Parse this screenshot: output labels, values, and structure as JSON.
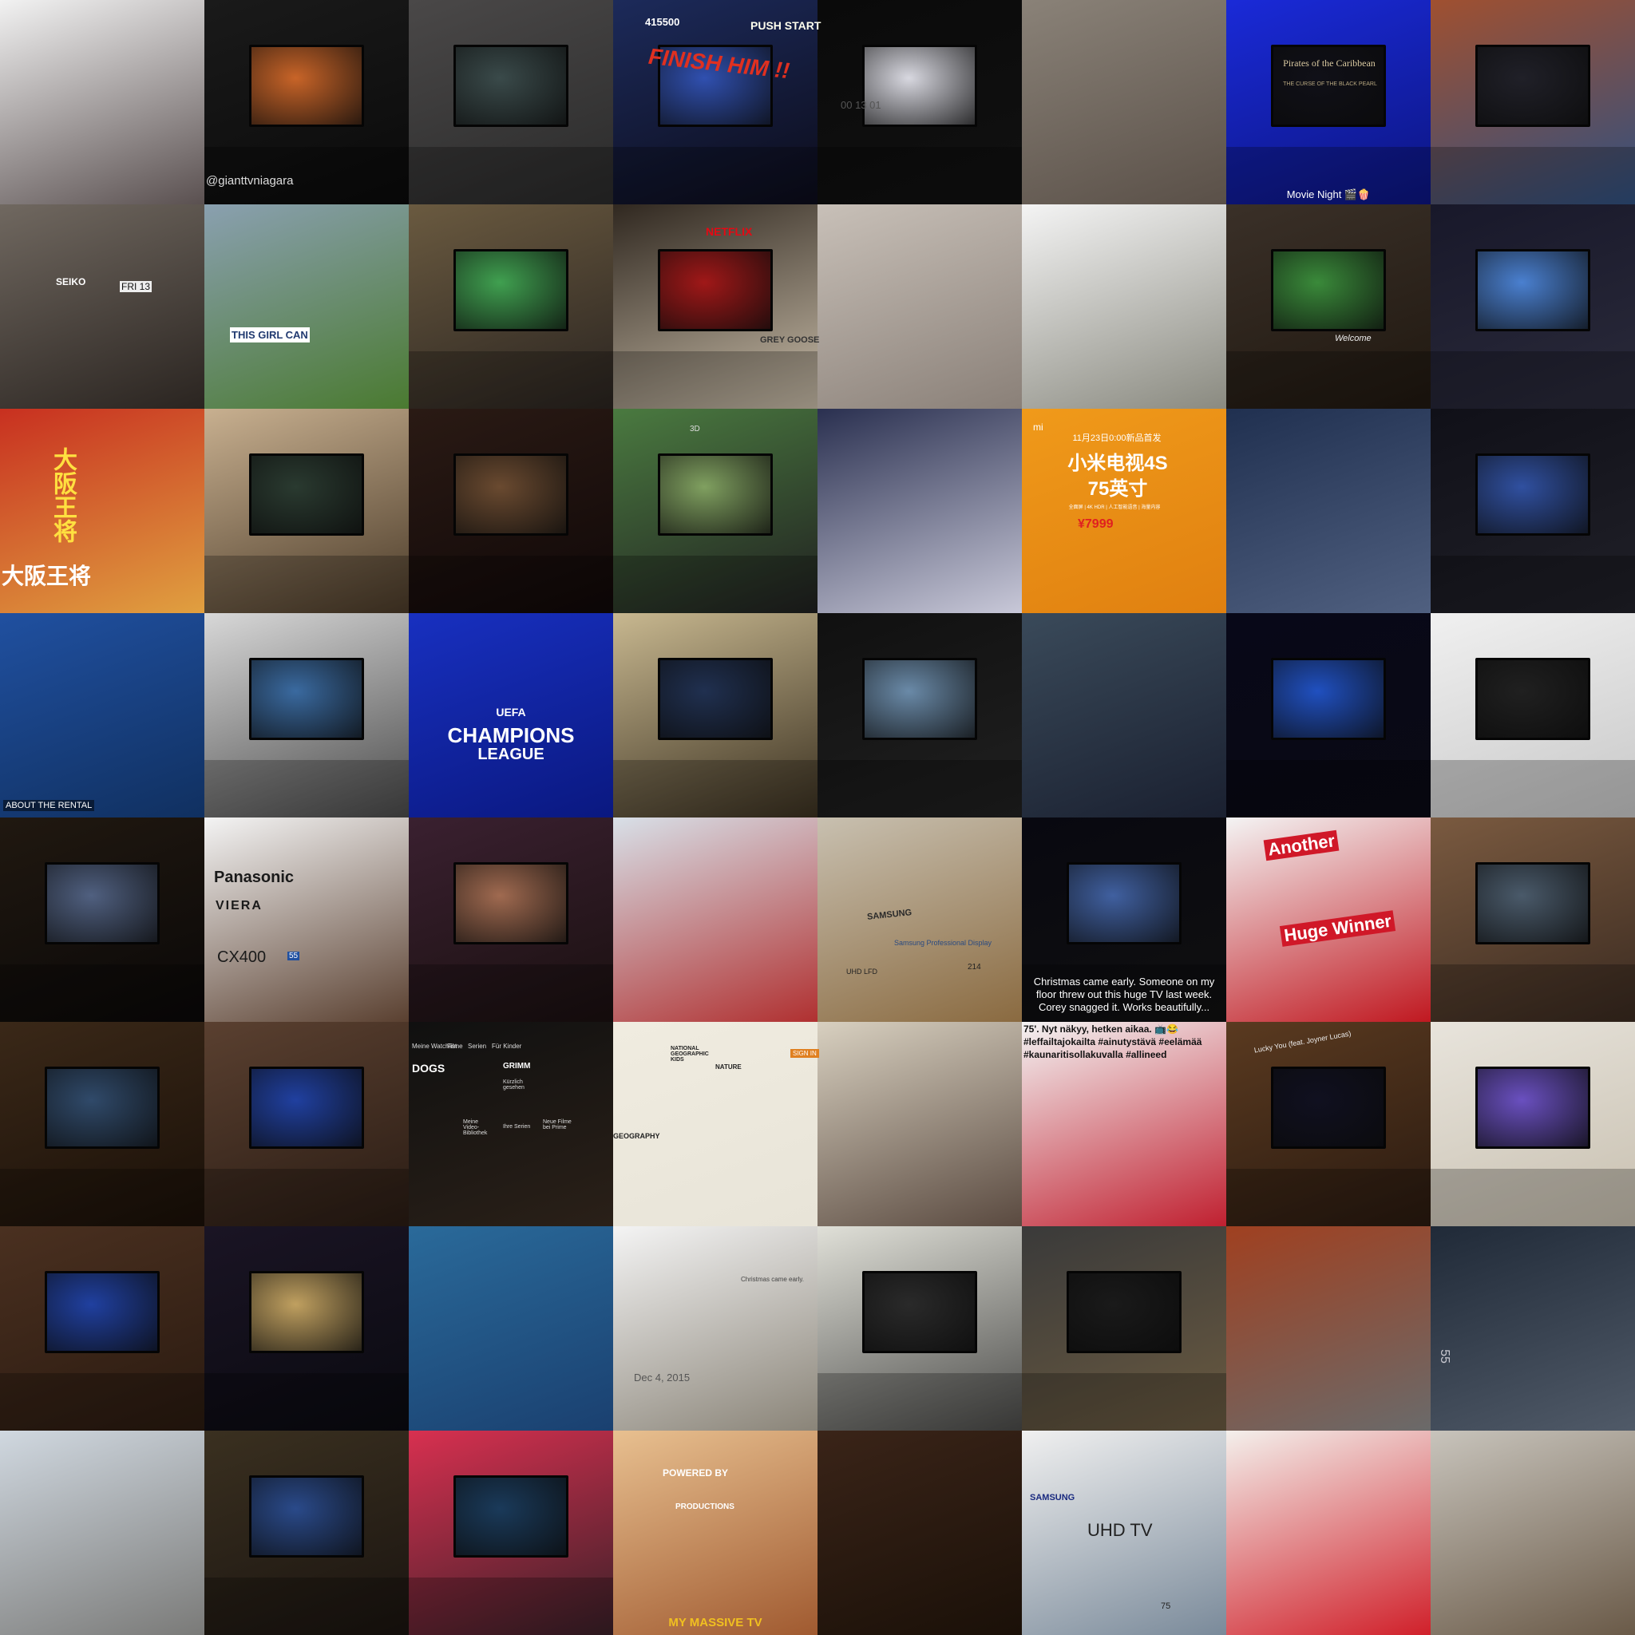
{
  "tiles": [
    {
      "id": "r0c0",
      "bg": [
        "#f2f2f2",
        "#5a5050"
      ],
      "screen": false,
      "desc": "selfie-couple"
    },
    {
      "id": "r0c1",
      "bg": [
        "#1a1a1a",
        "#0a0a0a"
      ],
      "screen": true,
      "screen_color": "#c86428",
      "desc": "camera-filming-tv"
    },
    {
      "id": "r0c2",
      "bg": [
        "#4a4848",
        "#2a2a2a"
      ],
      "screen": true,
      "screen_color": "#3a4a4a",
      "desc": "empty-living-room-tv-wall"
    },
    {
      "id": "r0c3",
      "bg": [
        "#1c2a5a",
        "#0c0c1a"
      ],
      "screen": true,
      "screen_color": "#3050b0",
      "desc": "arcade-game-on-tv"
    },
    {
      "id": "r0c4",
      "bg": [
        "#0a0a0a",
        "#111111"
      ],
      "screen": true,
      "screen_color": "#d8d8e0",
      "desc": "computer-screen-dashboard"
    },
    {
      "id": "r0c5",
      "bg": [
        "#8a8278",
        "#5a5048"
      ],
      "screen": false,
      "desc": "unfinished-wall"
    },
    {
      "id": "r0c6",
      "bg": [
        "#1a2ad8",
        "#0c1580"
      ],
      "screen": true,
      "screen_color": "#101018",
      "desc": "movie-night-blue-room"
    },
    {
      "id": "r0c7",
      "bg": [
        "#a05030",
        "#305080"
      ],
      "screen": true,
      "screen_color": "#202028",
      "desc": "brick-wall-collage"
    },
    {
      "id": "r1c0",
      "bg": [
        "#706860",
        "#2a2420"
      ],
      "screen": false,
      "desc": "seiko-watch"
    },
    {
      "id": "r1c1",
      "bg": [
        "#8aa0b0",
        "#4a7a30"
      ],
      "screen": false,
      "desc": "group-outdoor-banner"
    },
    {
      "id": "r1c2",
      "bg": [
        "#6a5a40",
        "#2a2420"
      ],
      "screen": true,
      "screen_color": "#40a050",
      "desc": "selfie-soccer-projection"
    },
    {
      "id": "r1c3",
      "bg": [
        "#302820",
        "#c8bca8"
      ],
      "screen": true,
      "screen_color": "#a01818",
      "desc": "netflix-drinks-table"
    },
    {
      "id": "r1c4",
      "bg": [
        "#c8c0b8",
        "#8a8078"
      ],
      "screen": false,
      "desc": "empty-apartment-room"
    },
    {
      "id": "r1c5",
      "bg": [
        "#f4f4f4",
        "#8a8a80"
      ],
      "screen": false,
      "desc": "window-view-cat-bed"
    },
    {
      "id": "r1c6",
      "bg": [
        "#3a3028",
        "#201810"
      ],
      "screen": true,
      "screen_color": "#3a8a3a",
      "desc": "football-on-tv-fireplace"
    },
    {
      "id": "r1c7",
      "bg": [
        "#18182a",
        "#2a2a3a"
      ],
      "screen": true,
      "screen_color": "#4a80d0",
      "desc": "dark-room-tv-menu"
    },
    {
      "id": "r2c0",
      "bg": [
        "#c83020",
        "#e0a040"
      ],
      "screen": false,
      "desc": "osaka-street-signs"
    },
    {
      "id": "r2c1",
      "bg": [
        "#c8b090",
        "#4a3a28"
      ],
      "screen": true,
      "screen_color": "#2a3a30",
      "desc": "tv-fish-scene"
    },
    {
      "id": "r2c2",
      "bg": [
        "#2a1a14",
        "#100808"
      ],
      "screen": true,
      "screen_color": "#6a4a30",
      "desc": "dark-bedroom-tv"
    },
    {
      "id": "r2c3",
      "bg": [
        "#4a7a40",
        "#202020"
      ],
      "screen": true,
      "screen_color": "#80a060",
      "desc": "tv-presenter"
    },
    {
      "id": "r2c4",
      "bg": [
        "#2a3050",
        "#c8c8d8"
      ],
      "screen": false,
      "desc": "white-dog-plush"
    },
    {
      "id": "r2c5",
      "bg": [
        "#f09a1a",
        "#e08010"
      ],
      "screen": false,
      "desc": "xiaomi-tv-ad"
    },
    {
      "id": "r2c6",
      "bg": [
        "#203050",
        "#506080"
      ],
      "screen": false,
      "desc": "legs-on-couch"
    },
    {
      "id": "r2c7",
      "bg": [
        "#101018",
        "#202028"
      ],
      "screen": true,
      "screen_color": "#3050a0",
      "desc": "wrestling-on-tv"
    },
    {
      "id": "r3c0",
      "bg": [
        "#2050a0",
        "#103060"
      ],
      "screen": false,
      "desc": "crowd-on-tv-closeup"
    },
    {
      "id": "r3c1",
      "bg": [
        "#d8d8d8",
        "#4a4a4a"
      ],
      "screen": true,
      "screen_color": "#3a6aa0",
      "desc": "office-video-wall"
    },
    {
      "id": "r3c2",
      "bg": [
        "#1830c0",
        "#0a1880"
      ],
      "screen": false,
      "desc": "champions-league-logo"
    },
    {
      "id": "r3c3",
      "bg": [
        "#c8b890",
        "#3a3020"
      ],
      "screen": true,
      "screen_color": "#203050",
      "desc": "tv-on-cabinet"
    },
    {
      "id": "r3c4",
      "bg": [
        "#101010",
        "#202020"
      ],
      "screen": true,
      "screen_color": "#6a8aa8",
      "desc": "video-game-on-tv"
    },
    {
      "id": "r3c5",
      "bg": [
        "#3a4a5a",
        "#1a2030"
      ],
      "screen": false,
      "desc": "people-posing"
    },
    {
      "id": "r3c6",
      "bg": [
        "#080818",
        "#0a0a14"
      ],
      "screen": true,
      "screen_color": "#2050c0",
      "desc": "dark-tv-glow"
    },
    {
      "id": "r3c7",
      "bg": [
        "#f0f0f0",
        "#c8c8c8"
      ],
      "screen": true,
      "screen_color": "#202020",
      "desc": "white-living-room"
    },
    {
      "id": "r4c0",
      "bg": [
        "#201810",
        "#0a0808"
      ],
      "screen": true,
      "screen_color": "#506080",
      "desc": "bar-with-screens"
    },
    {
      "id": "r4c1",
      "bg": [
        "#f4f4f4",
        "#5a4030"
      ],
      "screen": false,
      "desc": "panasonic-viera-box"
    },
    {
      "id": "r4c2",
      "bg": [
        "#3a2030",
        "#1a1010"
      ],
      "screen": true,
      "screen_color": "#a06a50",
      "desc": "projector-movie-room"
    },
    {
      "id": "r4c3",
      "bg": [
        "#d8e0e8",
        "#b03030"
      ],
      "screen": false,
      "desc": "snow-selfie"
    },
    {
      "id": "r4c4",
      "bg": [
        "#c8c0b0",
        "#8a6a40"
      ],
      "screen": false,
      "desc": "samsung-display-box"
    },
    {
      "id": "r4c5",
      "bg": [
        "#080810",
        "#101010"
      ],
      "screen": true,
      "screen_color": "#4060a0",
      "desc": "tv-christmas-caption"
    },
    {
      "id": "r4c6",
      "bg": [
        "#f4f4f4",
        "#c01820"
      ],
      "screen": false,
      "desc": "huge-winner-promo"
    },
    {
      "id": "r4c7",
      "bg": [
        "#7a5a40",
        "#3a2a20"
      ],
      "screen": true,
      "screen_color": "#4a5a6a",
      "desc": "fireplace-tv-collage"
    },
    {
      "id": "r5c0",
      "bg": [
        "#3a2818",
        "#1a1008"
      ],
      "screen": true,
      "screen_color": "#304a6a",
      "desc": "bookshelf-dog-tv"
    },
    {
      "id": "r5c1",
      "bg": [
        "#5a4030",
        "#2a1c14"
      ],
      "screen": true,
      "screen_color": "#2040a0",
      "desc": "girl-hotel-tv"
    },
    {
      "id": "r5c2",
      "bg": [
        "#101010",
        "#2a2018"
      ],
      "screen": false,
      "desc": "streaming-app-menu"
    },
    {
      "id": "r5c3",
      "bg": [
        "#f0ece0",
        "#e8e4d8"
      ],
      "screen": false,
      "desc": "natgeo-kids-page"
    },
    {
      "id": "r5c4",
      "bg": [
        "#d8d0c0",
        "#5a4a40"
      ],
      "screen": false,
      "desc": "cartoon-on-tv"
    },
    {
      "id": "r5c5",
      "bg": [
        "#f4f4f4",
        "#c02030"
      ],
      "screen": false,
      "desc": "finnish-caption-tv"
    },
    {
      "id": "r5c6",
      "bg": [
        "#5a3a20",
        "#2a1a10"
      ],
      "screen": true,
      "screen_color": "#101020",
      "desc": "music-player-tv"
    },
    {
      "id": "r5c7",
      "bg": [
        "#e8e4dc",
        "#c8c0b0"
      ],
      "screen": true,
      "screen_color": "#6a50c0",
      "desc": "purple-swimmer-tv"
    },
    {
      "id": "r6c0",
      "bg": [
        "#4a3020",
        "#2a1a10"
      ],
      "screen": true,
      "screen_color": "#2040a0",
      "desc": "home-theater-cabinet"
    },
    {
      "id": "r6c1",
      "bg": [
        "#1a1424",
        "#0a0a10"
      ],
      "screen": true,
      "screen_color": "#c0a060",
      "desc": "tv-wall-presentation"
    },
    {
      "id": "r6c2",
      "bg": [
        "#2a6a9a",
        "#1a4070"
      ],
      "screen": false,
      "desc": "rusty-tv-beach"
    },
    {
      "id": "r6c3",
      "bg": [
        "#f4f4f4",
        "#8a8478"
      ],
      "screen": false,
      "desc": "tv-assembly-collage"
    },
    {
      "id": "r6c4",
      "bg": [
        "#e0e0d8",
        "#4a4a48"
      ],
      "screen": true,
      "screen_color": "#2a2a2a",
      "desc": "crt-tv-on-cart"
    },
    {
      "id": "r6c5",
      "bg": [
        "#3a3a3a",
        "#6a5a40"
      ],
      "screen": true,
      "screen_color": "#1a1a1a",
      "desc": "selfie-conference-room"
    },
    {
      "id": "r6c6",
      "bg": [
        "#a04020",
        "#6a6a6a"
      ],
      "screen": false,
      "desc": "street-led-canopy"
    },
    {
      "id": "r6c7",
      "bg": [
        "#202a38",
        "#505a68"
      ],
      "screen": false,
      "desc": "55-inch-box"
    },
    {
      "id": "r7c0",
      "bg": [
        "#d0d8e0",
        "#7a7a78"
      ],
      "screen": false,
      "desc": "street-event-woman"
    },
    {
      "id": "r7c1",
      "bg": [
        "#3a3020",
        "#1a1410"
      ],
      "screen": true,
      "screen_color": "#2a4a8a",
      "desc": "kids-watching-sports"
    },
    {
      "id": "r7c2",
      "bg": [
        "#d83050",
        "#3a2028"
      ],
      "screen": true,
      "screen_color": "#1a3a5a",
      "desc": "pink-lit-living-room"
    },
    {
      "id": "r7c3",
      "bg": [
        "#e8c090",
        "#a05a30"
      ],
      "screen": false,
      "desc": "my-massive-tv-game"
    },
    {
      "id": "r7c4",
      "bg": [
        "#3a2418",
        "#1a1008"
      ],
      "screen": false,
      "desc": "ornate-interior"
    },
    {
      "id": "r7c5",
      "bg": [
        "#f0f0f0",
        "#7a8a9a"
      ],
      "screen": false,
      "desc": "samsung-uhd-box"
    },
    {
      "id": "r7c6",
      "bg": [
        "#f4f0ec",
        "#d0202a"
      ],
      "screen": false,
      "desc": "three-women-red-dresses"
    },
    {
      "id": "r7c7",
      "bg": [
        "#c8c4bc",
        "#6a5a48"
      ],
      "screen": false,
      "desc": "living-room-plate"
    }
  ],
  "texts": {
    "r0c1_tag": "@gianttvniagara",
    "r0c3_score": "415500",
    "r0c3_push": "PUSH START",
    "r0c3_finish": "FINISH HIM !!",
    "r0c4_timer": "00 13 01",
    "r0c6_pirates": "Pirates of the Caribbean",
    "r0c6_pirates_sub": "THE CURSE OF THE BLACK PEARL",
    "r0c6_caption": "Movie Night 🎬🍿",
    "r1c0_brand": "SEIKO",
    "r1c0_day": "FRI 13",
    "r1c1_banner": "THIS GIRL CAN",
    "r1c3_netflix": "NETFLIX",
    "r1c3_bottle": "GREY GOOSE",
    "r1c6_sign": "Welcome",
    "r2c0_sign": "大阪王将",
    "r2c0_sign2": "大阪王将",
    "r2c3_3d": "3D",
    "r2c5_top": "11月23日0:00新品首发",
    "r2c5_title": "小米电视4S",
    "r2c5_size": "75英寸",
    "r2c5_sub": "全面屏 | 4K HDR | 人工智能语音 | 海量内容",
    "r2c5_price": "¥7999",
    "r2c5_mi": "mi",
    "r3c0_ticker": "ABOUT THE RENTAL",
    "r3c2_uefa": "UEFA",
    "r3c2_champions": "CHAMPIONS",
    "r3c2_league": "LEAGUE",
    "r4c1_brand": "Panasonic",
    "r4c1_viera": "VIERA",
    "r4c1_model": "CX400",
    "r4c1_size": "55",
    "r4c4_samsung": "SAMSUNG",
    "r4c4_display": "Samsung Professional Display",
    "r4c4_uhd": "UHD LFD",
    "r4c4_num": "214",
    "r4c5_caption": "Christmas came early. Someone on my floor threw out this huge TV last week. Corey snagged it. Works beautifully...",
    "r4c6_another": "Another",
    "r4c6_winner": "Huge Winner",
    "r5c2_menu1": "Meine Watchlist",
    "r5c2_menu2": "Filme",
    "r5c2_menu3": "Serien",
    "r5c2_menu4": "Für Kinder",
    "r5c2_dogs": "DOGS",
    "r5c2_grimm": "GRIMM",
    "r5c2_label1": "Kürzlich gesehen",
    "r5c2_label2": "Meine Video-Bibliothek",
    "r5c2_label3": "Ihre Serien",
    "r5c2_label4": "Neue Filme bei Prime",
    "r5c3_brand": "NATIONAL GEOGRAPHIC KIDS",
    "r5c3_nature": "NATURE",
    "r5c3_geo": "GEOGRAPHY",
    "r5c3_signin": "SIGN IN",
    "r5c5_caption1": "75'. Nyt näkyy, hetken aikaa. 📺😂",
    "r5c5_caption2": "#leffailtajokailta #ainutystävä #eelämää",
    "r5c5_caption3": "#kaunaritisollakuvalla #allineed",
    "r5c6_song": "Lucky You (feat. Joyner Lucas)",
    "r6c3_note": "Christmas came early.",
    "r6c3_date": "Dec 4, 2015",
    "r6c7_size": "55",
    "r7c3_powered": "POWERED BY",
    "r7c3_pro": "PRODUCTIONS",
    "r7c3_massive": "MY MASSIVE TV",
    "r7c5_samsung": "SAMSUNG",
    "r7c5_uhd": "UHD TV",
    "r7c5_size": "75"
  }
}
